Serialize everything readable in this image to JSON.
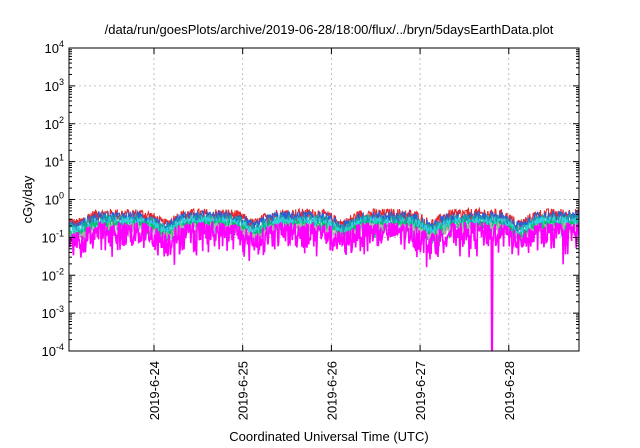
{
  "chart_data": {
    "type": "line",
    "title": "/data/run/goesPlots/archive/2019-06-28/18:00/flux/../bryn/5daysEarthData.plot",
    "xlabel": "Coordinated Universal Time (UTC)",
    "ylabel": "cGy/day",
    "yscale": "log",
    "ylim": [
      0.0001,
      10000
    ],
    "y_ticks": [
      {
        "value": 0.0001,
        "base": "10",
        "exp": "-4"
      },
      {
        "value": 0.001,
        "base": "10",
        "exp": "-3"
      },
      {
        "value": 0.01,
        "base": "10",
        "exp": "-2"
      },
      {
        "value": 0.1,
        "base": "10",
        "exp": "-1"
      },
      {
        "value": 1,
        "base": "10",
        "exp": "0"
      },
      {
        "value": 10,
        "base": "10",
        "exp": "1"
      },
      {
        "value": 100,
        "base": "10",
        "exp": "2"
      },
      {
        "value": 1000,
        "base": "10",
        "exp": "3"
      },
      {
        "value": 10000,
        "base": "10",
        "exp": "4"
      }
    ],
    "xlim": [
      "2019-06-23T01:00",
      "2019-06-28T19:00"
    ],
    "x_ticks": [
      {
        "value": "2019-06-24T00:00",
        "label": "2019-6-24"
      },
      {
        "value": "2019-06-25T00:00",
        "label": "2019-6-25"
      },
      {
        "value": "2019-06-26T00:00",
        "label": "2019-6-26"
      },
      {
        "value": "2019-06-27T00:00",
        "label": "2019-6-27"
      },
      {
        "value": "2019-06-28T00:00",
        "label": "2019-6-28"
      }
    ],
    "grid": true,
    "legend": "none",
    "series": [
      {
        "color": "#e8262a",
        "base_level": 0.42,
        "noise": 0.12
      },
      {
        "color": "#2a5fd6",
        "base_level": 0.36,
        "noise": 0.1
      },
      {
        "color": "#1aa0a6",
        "base_level": 0.3,
        "noise": 0.08
      },
      {
        "color": "#2fd2d8",
        "base_level": 0.26,
        "noise": 0.07
      },
      {
        "color": "#00c060",
        "base_level": 0.21,
        "noise": 0.05
      },
      {
        "color": "#b0b0b0",
        "base_level": 0.19,
        "noise": 0.04
      },
      {
        "color": "#ff00ff",
        "base_level": 0.15,
        "noise": 0.08
      }
    ],
    "daily_dip": {
      "center_hour_utc": 3,
      "width_hours": 5,
      "factor": 0.55
    },
    "spike": {
      "time": "2019-06-27T19:30",
      "series_color": "#ff00ff",
      "value": 0.0001
    }
  }
}
